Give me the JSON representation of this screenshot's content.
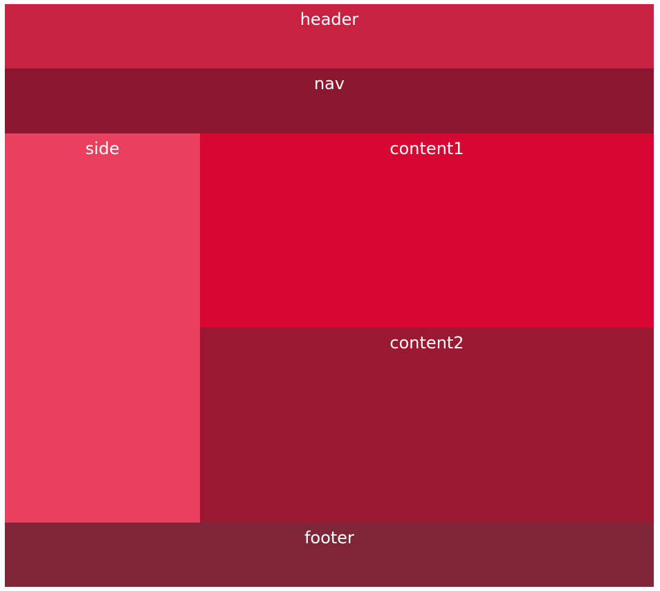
{
  "regions": {
    "header": {
      "label": "header",
      "color": "#c82242"
    },
    "nav": {
      "label": "nav",
      "color": "#8b172e"
    },
    "side": {
      "label": "side",
      "color": "#e8405e"
    },
    "content1": {
      "label": "content1",
      "color": "#d70733"
    },
    "content2": {
      "label": "content2",
      "color": "#9b1832"
    },
    "footer": {
      "label": "footer",
      "color": "#7e2638"
    }
  }
}
